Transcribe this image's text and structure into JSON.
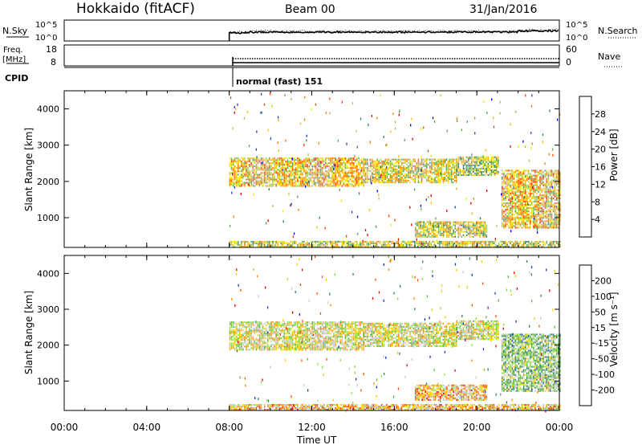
{
  "header": {
    "title": "Hokkaido (fitACF)",
    "beam": "Beam 00",
    "date": "31/Jan/2016"
  },
  "panels": {
    "nsky": {
      "label": "N.Sky",
      "ticks": [
        "10^5",
        "10^0"
      ],
      "right_ticks": [
        "10^5",
        "10^0"
      ],
      "right_label": "N.Search"
    },
    "freq": {
      "label_line1": "Freq.",
      "label_line2": "[MHz]",
      "ticks": [
        "18",
        "8"
      ],
      "right_ticks": [
        "60",
        "0"
      ],
      "right_label": "Nave"
    },
    "cpid": {
      "label": "CPID",
      "value": "normal (fast) 151"
    }
  },
  "chart_data": [
    {
      "type": "heatmap",
      "name": "power",
      "ylabel": "Slant Range [km]",
      "ylim": [
        180,
        4500
      ],
      "yticks": [
        "4000",
        "3000",
        "2000",
        "1000"
      ],
      "colorbar": {
        "label": "Power [dB]",
        "ticks": [
          "28",
          "24",
          "20",
          "16",
          "12",
          "8",
          "4"
        ],
        "colors": [
          "#0000ff",
          "#1e3cc8",
          "#2d7d5a",
          "#5aa05a",
          "#a0c850",
          "#f0e600",
          "#ffb400",
          "#ff7800",
          "#ff3c00",
          "#e60000"
        ]
      },
      "bands": [
        {
          "t0": 8.0,
          "t1": 14.5,
          "r0": 1850,
          "r1": 2650,
          "level": 0.6
        },
        {
          "t0": 14.5,
          "t1": 19.0,
          "r0": 1950,
          "r1": 2600,
          "level": 0.55
        },
        {
          "t0": 19.0,
          "t1": 21.0,
          "r0": 2150,
          "r1": 2650,
          "level": 0.45
        },
        {
          "t0": 21.2,
          "t1": 24.0,
          "r0": 700,
          "r1": 2300,
          "level": 0.6
        },
        {
          "t0": 8.0,
          "t1": 24.0,
          "r0": 180,
          "r1": 320,
          "level": 0.5
        },
        {
          "t0": 17.0,
          "t1": 20.5,
          "r0": 450,
          "r1": 900,
          "level": 0.5
        }
      ]
    },
    {
      "type": "heatmap",
      "name": "velocity",
      "ylabel": "Slant Range [km]",
      "ylim": [
        180,
        4500
      ],
      "yticks": [
        "4000",
        "3000",
        "2000",
        "1000"
      ],
      "xlabel": "Time UT",
      "xticks": [
        "00:00",
        "04:00",
        "08:00",
        "12:00",
        "16:00",
        "20:00",
        "00:00"
      ],
      "colorbar": {
        "label": "Velocity [m s⁻¹]",
        "ticks": [
          "200",
          "100",
          "50",
          "15",
          "-15",
          "-50",
          "-100",
          "-200"
        ],
        "colors": [
          "#1432c8",
          "#2d7d5a",
          "#5ab43c",
          "#8cdc3c",
          "#c8c8c8",
          "#ffc800",
          "#ff8c00",
          "#ff5000",
          "#e60000"
        ]
      },
      "bands": [
        {
          "t0": 8.0,
          "t1": 14.5,
          "r0": 1850,
          "r1": 2650,
          "level": 0.5
        },
        {
          "t0": 14.5,
          "t1": 19.0,
          "r0": 1950,
          "r1": 2600,
          "level": 0.5
        },
        {
          "t0": 19.0,
          "t1": 21.0,
          "r0": 2150,
          "r1": 2650,
          "level": 0.5
        },
        {
          "t0": 21.2,
          "t1": 24.0,
          "r0": 700,
          "r1": 2300,
          "level": 0.35
        },
        {
          "t0": 8.0,
          "t1": 24.0,
          "r0": 180,
          "r1": 320,
          "level": 0.65
        },
        {
          "t0": 17.0,
          "t1": 20.5,
          "r0": 450,
          "r1": 900,
          "level": 0.65
        }
      ]
    }
  ]
}
